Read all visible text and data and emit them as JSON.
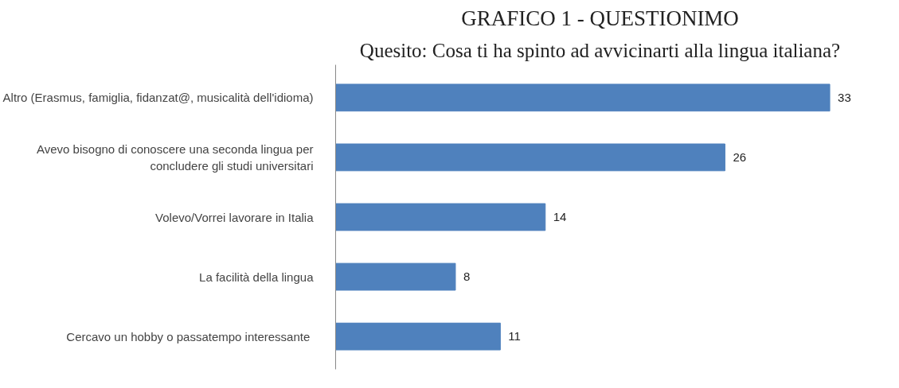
{
  "chart_data": {
    "type": "bar",
    "orientation": "horizontal",
    "title": "GRAFICO 1 - QUESTIONIMO",
    "subtitle": "Quesito: Cosa ti ha spinto ad avvicinarti alla lingua italiana?",
    "categories": [
      "Altro (Erasmus, famiglia, fidanzat@, musicalità dell'idioma)",
      "Avevo bisogno di conoscere una seconda lingua per\nconcludere gli studi universitari",
      "Volevo/Vorrei lavorare in Italia",
      "La facilità della lingua",
      "Cercavo un hobby  o passatempo interessante"
    ],
    "values": [
      33,
      26,
      14,
      8,
      11
    ],
    "color": "#4f81bd",
    "data_labels": true,
    "grid": false
  }
}
